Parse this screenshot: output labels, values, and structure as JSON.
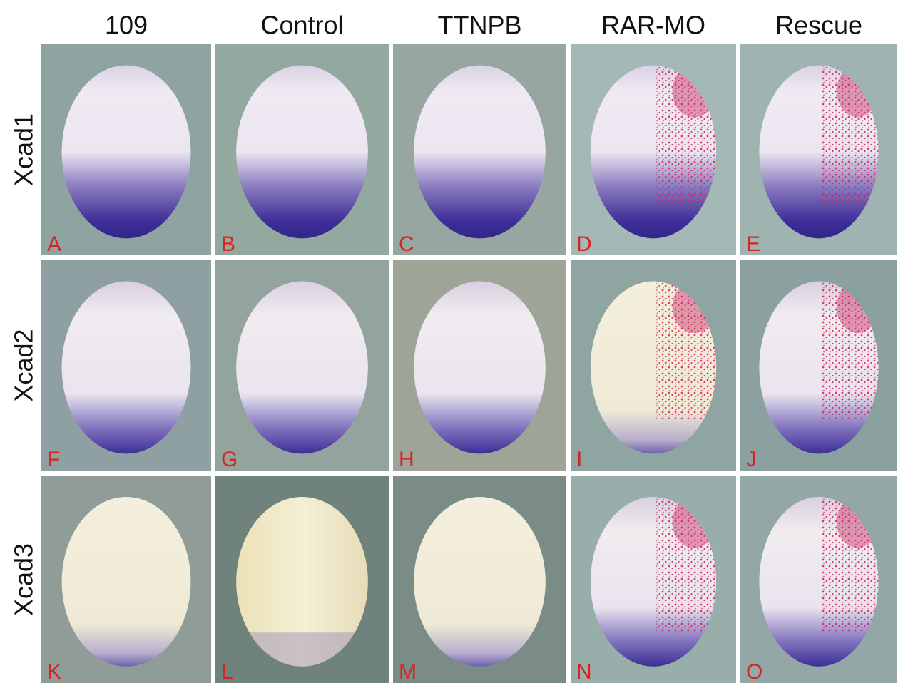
{
  "columns": [
    "109",
    "Control",
    "TTNPB",
    "RAR-MO",
    "Rescue"
  ],
  "rows": [
    {
      "label": "Xcad1",
      "panels": [
        "A",
        "B",
        "C",
        "D",
        "E"
      ]
    },
    {
      "label": "Xcad2",
      "panels": [
        "F",
        "G",
        "H",
        "I",
        "J"
      ]
    },
    {
      "label": "Xcad3",
      "panels": [
        "K",
        "L",
        "M",
        "N",
        "O"
      ]
    }
  ]
}
